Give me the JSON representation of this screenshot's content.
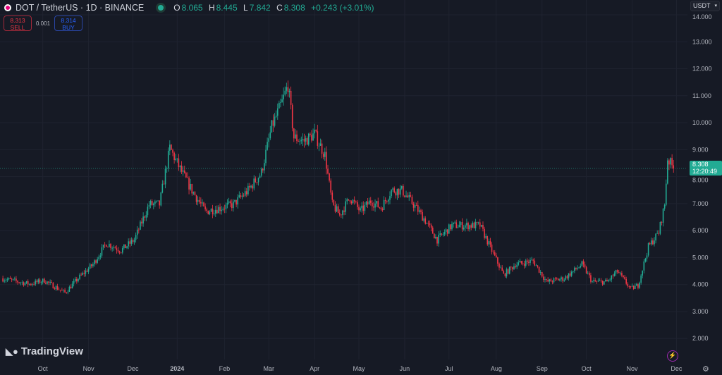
{
  "header": {
    "symbol": "DOT / TetherUS · 1D · BINANCE",
    "o_label": "O",
    "o": "8.065",
    "h_label": "H",
    "h": "8.445",
    "l_label": "L",
    "l": "7.842",
    "c_label": "C",
    "c": "8.308",
    "change": "+0.243 (+3.01%)"
  },
  "trade": {
    "sell_price": "8.313",
    "sell_label": "SELL",
    "spread": "0.001",
    "buy_price": "8.314",
    "buy_label": "BUY"
  },
  "currency": "USDT",
  "price_tag": {
    "price": "8.308",
    "countdown": "12:20:49"
  },
  "brand": "TradingView",
  "colors": {
    "up": "#22ab94",
    "down": "#f23645",
    "bg": "#161a25",
    "grid": "#1f2330"
  },
  "chart_data": {
    "type": "candlestick",
    "title": "DOT / TetherUS 1D",
    "ylim": [
      1.5,
      14.3
    ],
    "y_ticks": [
      "2.000",
      "3.000",
      "4.000",
      "5.000",
      "6.000",
      "7.000",
      "8.000",
      "9.000",
      "10.000",
      "11.000",
      "12.000",
      "13.000",
      "14.000"
    ],
    "x_ticks": [
      {
        "label": "Oct",
        "day": 28
      },
      {
        "label": "Nov",
        "day": 59
      },
      {
        "label": "Dec",
        "day": 89
      },
      {
        "label": "2024",
        "day": 119
      },
      {
        "label": "Feb",
        "day": 151
      },
      {
        "label": "Mar",
        "day": 181
      },
      {
        "label": "Apr",
        "day": 212
      },
      {
        "label": "May",
        "day": 242
      },
      {
        "label": "Jun",
        "day": 273
      },
      {
        "label": "Jul",
        "day": 303
      },
      {
        "label": "Aug",
        "day": 335
      },
      {
        "label": "Sep",
        "day": 366
      },
      {
        "label": "Oct",
        "day": 396
      },
      {
        "label": "Nov",
        "day": 427
      },
      {
        "label": "Dec",
        "day": 457
      }
    ],
    "price_path": [
      [
        0,
        4.23
      ],
      [
        19,
        4.02
      ],
      [
        29,
        4.15
      ],
      [
        43,
        3.7
      ],
      [
        52,
        4.23
      ],
      [
        62,
        4.75
      ],
      [
        71,
        5.53
      ],
      [
        81,
        5.27
      ],
      [
        90,
        5.66
      ],
      [
        100,
        6.97
      ],
      [
        107,
        6.97
      ],
      [
        114,
        9.06
      ],
      [
        121,
        8.28
      ],
      [
        129,
        7.49
      ],
      [
        138,
        6.71
      ],
      [
        148,
        6.84
      ],
      [
        157,
        6.97
      ],
      [
        167,
        7.49
      ],
      [
        176,
        8.15
      ],
      [
        183,
        9.85
      ],
      [
        190,
        10.76
      ],
      [
        194,
        11.41
      ],
      [
        198,
        9.45
      ],
      [
        205,
        9.32
      ],
      [
        212,
        9.58
      ],
      [
        219,
        8.8
      ],
      [
        224,
        6.97
      ],
      [
        229,
        6.58
      ],
      [
        236,
        7.23
      ],
      [
        243,
        6.71
      ],
      [
        250,
        7.1
      ],
      [
        257,
        6.84
      ],
      [
        264,
        7.49
      ],
      [
        271,
        7.49
      ],
      [
        279,
        6.97
      ],
      [
        286,
        6.45
      ],
      [
        295,
        5.66
      ],
      [
        305,
        6.19
      ],
      [
        314,
        6.19
      ],
      [
        324,
        6.19
      ],
      [
        333,
        5.14
      ],
      [
        340,
        4.36
      ],
      [
        348,
        4.75
      ],
      [
        360,
        4.88
      ],
      [
        369,
        4.1
      ],
      [
        381,
        4.23
      ],
      [
        393,
        4.75
      ],
      [
        400,
        4.1
      ],
      [
        410,
        4.1
      ],
      [
        417,
        4.49
      ],
      [
        426,
        3.84
      ],
      [
        431,
        3.97
      ],
      [
        438,
        5.4
      ],
      [
        445,
        5.93
      ],
      [
        449,
        6.97
      ],
      [
        451,
        8.67
      ],
      [
        455,
        8.308
      ]
    ],
    "last_price": 8.308
  }
}
